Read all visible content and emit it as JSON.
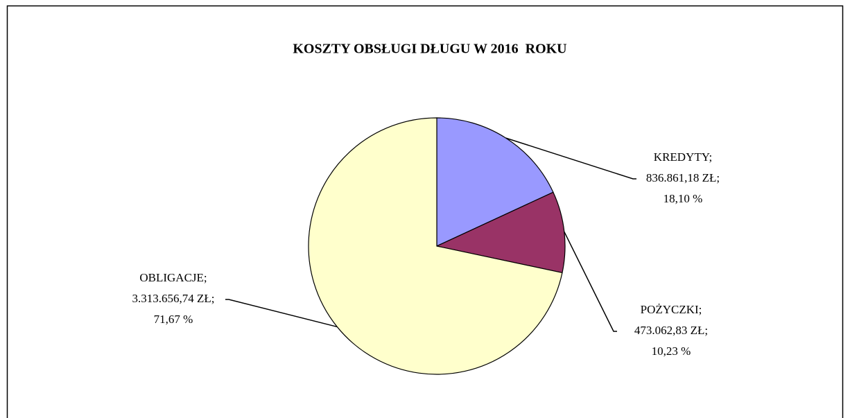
{
  "chart_data": {
    "type": "pie",
    "title": "KOSZTY OBSŁUGI DŁUGU W 2016  ROKU",
    "categories": [
      "KREDYTY;",
      "POŻYCZKI;",
      "OBLIGACJE;"
    ],
    "values": [
      836861.18,
      473062.83,
      3313656.74
    ],
    "value_labels": [
      "836.861,18 ZŁ;",
      "473.062,83 ZŁ;",
      "3.313.656,74 ZŁ;"
    ],
    "percents": [
      18.1,
      10.23,
      71.67
    ],
    "percent_labels": [
      "18,10 %",
      "10,23 %",
      "71,67 %"
    ],
    "colors": [
      "#9999ff",
      "#993366",
      "#ffffcc"
    ]
  }
}
